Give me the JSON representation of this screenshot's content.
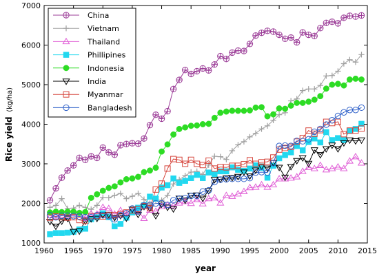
{
  "chart_data": {
    "type": "line",
    "xlabel": "year",
    "ylabel": "Rice yield",
    "ylabel_unit": "(kg/ha)",
    "xlim": [
      1960,
      2015
    ],
    "ylim": [
      1000,
      7000
    ],
    "xticks": [
      1960,
      1965,
      1970,
      1975,
      1980,
      1985,
      1990,
      1995,
      2000,
      2005,
      2010,
      2015
    ],
    "yticks": [
      1000,
      2000,
      3000,
      4000,
      5000,
      6000,
      7000
    ],
    "legend_position": "top-left",
    "grid": false,
    "x": [
      1961,
      1962,
      1963,
      1964,
      1965,
      1966,
      1967,
      1968,
      1969,
      1970,
      1971,
      1972,
      1973,
      1974,
      1975,
      1976,
      1977,
      1978,
      1979,
      1980,
      1981,
      1982,
      1983,
      1984,
      1985,
      1986,
      1987,
      1988,
      1989,
      1990,
      1991,
      1992,
      1993,
      1994,
      1995,
      1996,
      1997,
      1998,
      1999,
      2000,
      2001,
      2002,
      2003,
      2004,
      2005,
      2006,
      2007,
      2008,
      2009,
      2010,
      2011,
      2012,
      2013,
      2014
    ],
    "series": [
      {
        "name": "China",
        "color": "#9b3c97",
        "marker": "circle-plus",
        "values": [
          2080,
          2380,
          2650,
          2830,
          2960,
          3150,
          3100,
          3190,
          3150,
          3410,
          3290,
          3230,
          3470,
          3500,
          3520,
          3510,
          3640,
          3980,
          4240,
          4140,
          4330,
          4890,
          5120,
          5370,
          5270,
          5340,
          5410,
          5360,
          5510,
          5720,
          5650,
          5810,
          5860,
          5850,
          6030,
          6240,
          6310,
          6360,
          6340,
          6260,
          6160,
          6190,
          6070,
          6320,
          6260,
          6230,
          6430,
          6560,
          6590,
          6550,
          6690,
          6740,
          6720,
          6750
        ]
      },
      {
        "name": "Vietnam",
        "color": "#a0a0a0",
        "marker": "plus",
        "values": [
          1900,
          1950,
          2120,
          1870,
          1880,
          1950,
          1900,
          1850,
          1950,
          2150,
          2140,
          2200,
          2250,
          2120,
          2180,
          2250,
          2100,
          2000,
          2070,
          2080,
          2200,
          2490,
          2600,
          2700,
          2790,
          2810,
          2730,
          2970,
          3190,
          3180,
          3110,
          3330,
          3480,
          3560,
          3680,
          3770,
          3880,
          3960,
          4100,
          4240,
          4290,
          4590,
          4640,
          4850,
          4890,
          4890,
          4980,
          5220,
          5230,
          5340,
          5530,
          5630,
          5570,
          5760
        ]
      },
      {
        "name": "Thailand",
        "color": "#e05fd6",
        "marker": "triangle-up",
        "values": [
          1650,
          1680,
          1710,
          1700,
          1750,
          1750,
          1620,
          1740,
          1730,
          1900,
          1870,
          1730,
          1820,
          1720,
          1780,
          1810,
          1620,
          1830,
          1800,
          1920,
          1960,
          1940,
          2010,
          2050,
          2000,
          2100,
          1990,
          2120,
          2140,
          2010,
          2200,
          2180,
          2240,
          2300,
          2400,
          2410,
          2470,
          2410,
          2470,
          2620,
          2620,
          2640,
          2670,
          2810,
          2910,
          2880,
          2960,
          2850,
          2880,
          2920,
          2880,
          3070,
          3180,
          3020
        ]
      },
      {
        "name": "Phillipines",
        "color": "#22d8ef",
        "marker": "square",
        "values": [
          1220,
          1250,
          1250,
          1260,
          1280,
          1340,
          1360,
          1600,
          1650,
          1750,
          1650,
          1420,
          1480,
          1640,
          1770,
          1890,
          1950,
          2170,
          2120,
          2400,
          2460,
          2630,
          2520,
          2570,
          2640,
          2720,
          2640,
          2780,
          2740,
          2810,
          2810,
          2910,
          2850,
          2820,
          2880,
          2960,
          2900,
          2650,
          2950,
          3140,
          3220,
          3290,
          3450,
          3340,
          3550,
          3640,
          3540,
          3800,
          3600,
          3650,
          3600,
          3830,
          3880,
          4010
        ]
      },
      {
        "name": "Indonesia",
        "color": "#2ddc24",
        "marker": "circle-filled",
        "values": [
          1770,
          1790,
          1780,
          1790,
          1790,
          1760,
          1780,
          2140,
          2230,
          2320,
          2390,
          2430,
          2530,
          2610,
          2630,
          2670,
          2790,
          2830,
          2900,
          3310,
          3490,
          3740,
          3880,
          3920,
          3960,
          3970,
          4000,
          4010,
          4160,
          4290,
          4320,
          4340,
          4340,
          4340,
          4350,
          4420,
          4430,
          4200,
          4250,
          4400,
          4390,
          4470,
          4540,
          4540,
          4570,
          4620,
          4710,
          4900,
          5000,
          5020,
          4980,
          5130,
          5150,
          5130
        ]
      },
      {
        "name": "India",
        "color": "#000000",
        "marker": "triangle-down",
        "values": [
          1540,
          1420,
          1550,
          1620,
          1290,
          1300,
          1550,
          1610,
          1620,
          1710,
          1720,
          1640,
          1690,
          1630,
          1850,
          1720,
          1920,
          1880,
          1690,
          1980,
          1900,
          1860,
          2130,
          2080,
          2200,
          2210,
          2130,
          2320,
          2600,
          2610,
          2640,
          2650,
          2680,
          2790,
          2690,
          2840,
          2940,
          2890,
          3030,
          2910,
          2660,
          2930,
          3080,
          3150,
          3010,
          3350,
          3230,
          3380,
          3470,
          3380,
          3530,
          3600,
          3580,
          3600
        ]
      },
      {
        "name": "Myanmar",
        "color": "#d6453c",
        "marker": "square-open",
        "values": [
          1640,
          1670,
          1650,
          1640,
          1650,
          1580,
          1560,
          1680,
          1680,
          1670,
          1700,
          1700,
          1730,
          1770,
          1820,
          1860,
          1930,
          1880,
          2350,
          2500,
          2880,
          3120,
          3100,
          3000,
          3100,
          3000,
          2970,
          3080,
          2880,
          2920,
          2910,
          2950,
          2950,
          2990,
          3090,
          3000,
          3040,
          3050,
          3160,
          3360,
          3400,
          3430,
          3560,
          3650,
          3840,
          3760,
          3850,
          4060,
          4030,
          4060,
          3750,
          3840,
          3840,
          3890
        ]
      },
      {
        "name": "Bangladesh",
        "color": "#2d5fc8",
        "marker": "circle-open",
        "values": [
          1700,
          1650,
          1690,
          1690,
          1680,
          1670,
          1650,
          1650,
          1700,
          1700,
          1680,
          1600,
          1700,
          1750,
          1870,
          1800,
          1950,
          1960,
          2000,
          2000,
          1960,
          2080,
          2120,
          2130,
          2190,
          2190,
          2300,
          2330,
          2540,
          2600,
          2610,
          2620,
          2620,
          2620,
          2640,
          2780,
          2790,
          2780,
          3020,
          3450,
          3460,
          3450,
          3580,
          3570,
          3620,
          3810,
          3880,
          3990,
          4100,
          4210,
          4300,
          4360,
          4360,
          4420
        ]
      }
    ]
  }
}
